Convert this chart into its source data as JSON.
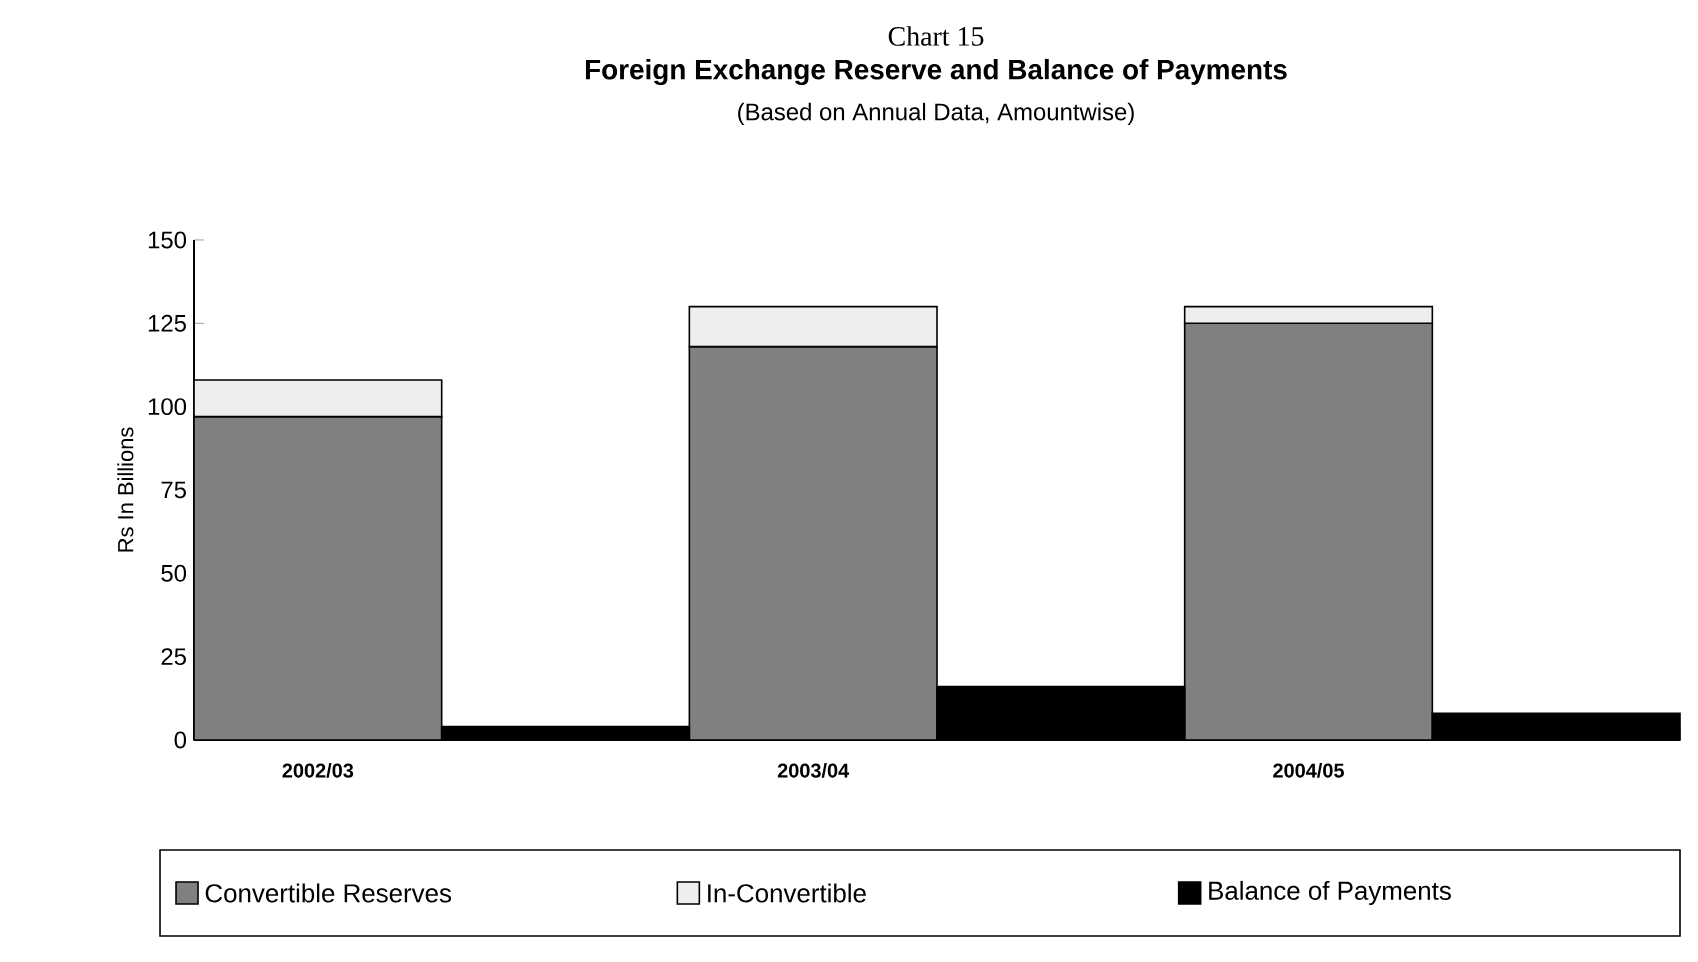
{
  "chart_data": {
    "type": "bar",
    "title": "Foreign Exchange Reserve and Balance of Payments",
    "subtitle": "(Based on Annual Data,  Amountwise)",
    "annotations": [
      "Chart 15"
    ],
    "ylabel": "Rs In Billions",
    "categories": [
      "2002/03",
      null,
      "2003/04",
      null,
      "2004/05",
      null
    ],
    "series": [
      {
        "name": "Convertible Reserves",
        "color": "#808080",
        "values": [
          97,
          null,
          118,
          null,
          125,
          null
        ]
      },
      {
        "name": "In-Convertible",
        "color": "#eeeeee",
        "values": [
          11,
          null,
          12,
          null,
          5,
          null
        ]
      },
      {
        "name": "Balance of Payments",
        "color": "#000000",
        "values": [
          null,
          4,
          null,
          16,
          null,
          8
        ]
      }
    ],
    "stacked": true,
    "ylim": [
      0,
      150
    ],
    "yticks": [
      0,
      25,
      50,
      75,
      100,
      125,
      150
    ],
    "legend": "bottom"
  }
}
